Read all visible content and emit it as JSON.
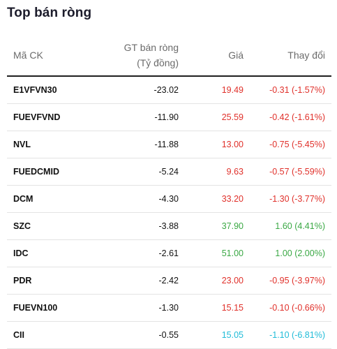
{
  "title": "Top bán ròng",
  "headers": {
    "code": "Mã CK",
    "value_line1": "GT bán ròng",
    "value_line2": "(Tỷ đồng)",
    "price": "Giá",
    "change": "Thay đổi"
  },
  "colors": {
    "down": "#e0302a",
    "up": "#3aa844",
    "floor": "#20bcd8"
  },
  "rows": [
    {
      "code": "E1VFVN30",
      "value": "-23.02",
      "price": "19.49",
      "change": "-0.31 (-1.57%)",
      "trend": "down"
    },
    {
      "code": "FUEVFVND",
      "value": "-11.90",
      "price": "25.59",
      "change": "-0.42 (-1.61%)",
      "trend": "down"
    },
    {
      "code": "NVL",
      "value": "-11.88",
      "price": "13.00",
      "change": "-0.75 (-5.45%)",
      "trend": "down"
    },
    {
      "code": "FUEDCMID",
      "value": "-5.24",
      "price": "9.63",
      "change": "-0.57 (-5.59%)",
      "trend": "down"
    },
    {
      "code": "DCM",
      "value": "-4.30",
      "price": "33.20",
      "change": "-1.30 (-3.77%)",
      "trend": "down"
    },
    {
      "code": "SZC",
      "value": "-3.88",
      "price": "37.90",
      "change": "1.60 (4.41%)",
      "trend": "up"
    },
    {
      "code": "IDC",
      "value": "-2.61",
      "price": "51.00",
      "change": "1.00 (2.00%)",
      "trend": "up"
    },
    {
      "code": "PDR",
      "value": "-2.42",
      "price": "23.00",
      "change": "-0.95 (-3.97%)",
      "trend": "down"
    },
    {
      "code": "FUEVN100",
      "value": "-1.30",
      "price": "15.15",
      "change": "-0.10 (-0.66%)",
      "trend": "down"
    },
    {
      "code": "CII",
      "value": "-0.55",
      "price": "15.05",
      "change": "-1.10 (-6.81%)",
      "trend": "floor"
    }
  ]
}
